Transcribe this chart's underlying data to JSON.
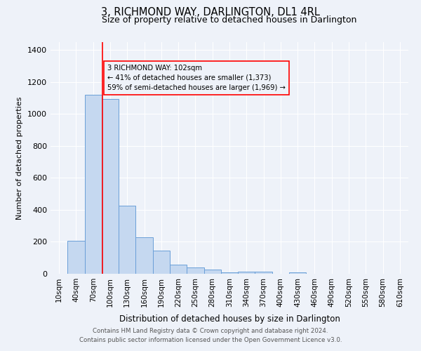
{
  "title": "3, RICHMOND WAY, DARLINGTON, DL1 4RL",
  "subtitle": "Size of property relative to detached houses in Darlington",
  "xlabel": "Distribution of detached houses by size in Darlington",
  "ylabel": "Number of detached properties",
  "bar_labels": [
    "10sqm",
    "40sqm",
    "70sqm",
    "100sqm",
    "130sqm",
    "160sqm",
    "190sqm",
    "220sqm",
    "250sqm",
    "280sqm",
    "310sqm",
    "340sqm",
    "370sqm",
    "400sqm",
    "430sqm",
    "460sqm",
    "490sqm",
    "520sqm",
    "550sqm",
    "580sqm",
    "610sqm"
  ],
  "bar_values": [
    0,
    207,
    1120,
    1095,
    425,
    230,
    145,
    57,
    38,
    25,
    10,
    13,
    15,
    0,
    10,
    0,
    0,
    0,
    0,
    0,
    0
  ],
  "bar_color": "#c5d8f0",
  "bar_edge_color": "#6a9fd8",
  "ylim": [
    0,
    1450
  ],
  "yticks": [
    0,
    200,
    400,
    600,
    800,
    1000,
    1200,
    1400
  ],
  "property_label": "3 RICHMOND WAY: 102sqm",
  "annotation_line1": "← 41% of detached houses are smaller (1,373)",
  "annotation_line2": "59% of semi-detached houses are larger (1,969) →",
  "red_line_x": 102,
  "bg_color": "#eef2f9",
  "grid_color": "#ffffff",
  "footer_line1": "Contains HM Land Registry data © Crown copyright and database right 2024.",
  "footer_line2": "Contains public sector information licensed under the Open Government Licence v3.0."
}
